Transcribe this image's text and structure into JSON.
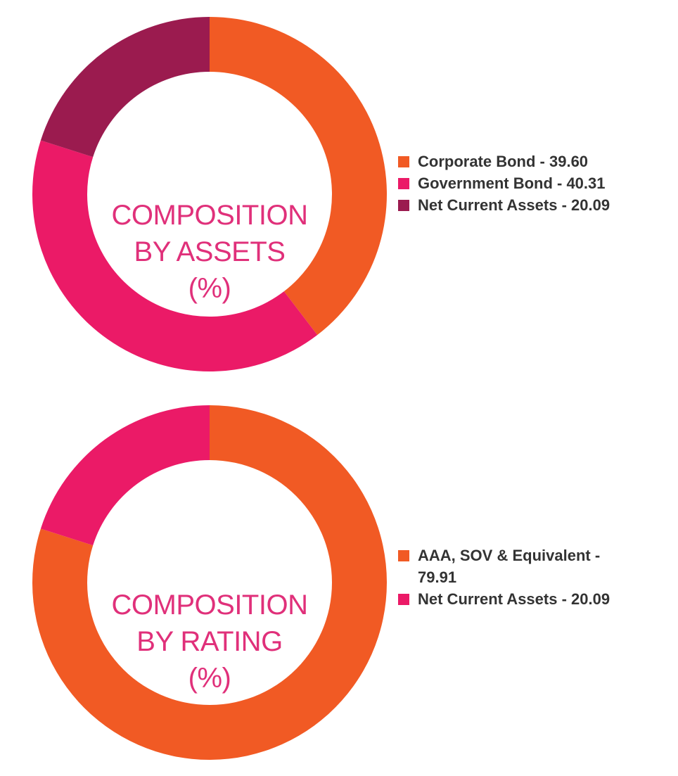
{
  "chart_data": [
    {
      "type": "pie",
      "center_label": [
        "COMPOSITION",
        "BY ASSETS",
        "(%)"
      ],
      "categories": [
        "Corporate Bond",
        "Government Bond",
        "Net Current Assets"
      ],
      "values": [
        39.6,
        40.31,
        20.09
      ],
      "colors": [
        "#f15a24",
        "#eb1a67",
        "#9b1b4f"
      ],
      "legend_labels": [
        "Corporate Bond - 39.60",
        "Government Bond - 40.31",
        "Net Current Assets - 20.09"
      ],
      "legend_position": "right"
    },
    {
      "type": "pie",
      "center_label": [
        "COMPOSITION",
        "BY RATING",
        "(%)"
      ],
      "categories": [
        "AAA, SOV & Equivalent",
        "Net Current Assets"
      ],
      "values": [
        79.91,
        20.09
      ],
      "colors": [
        "#f15a24",
        "#eb1a67"
      ],
      "legend_labels": [
        "AAA, SOV & Equivalent - 79.91",
        "Net Current Assets - 20.09"
      ],
      "legend_position": "right"
    }
  ]
}
